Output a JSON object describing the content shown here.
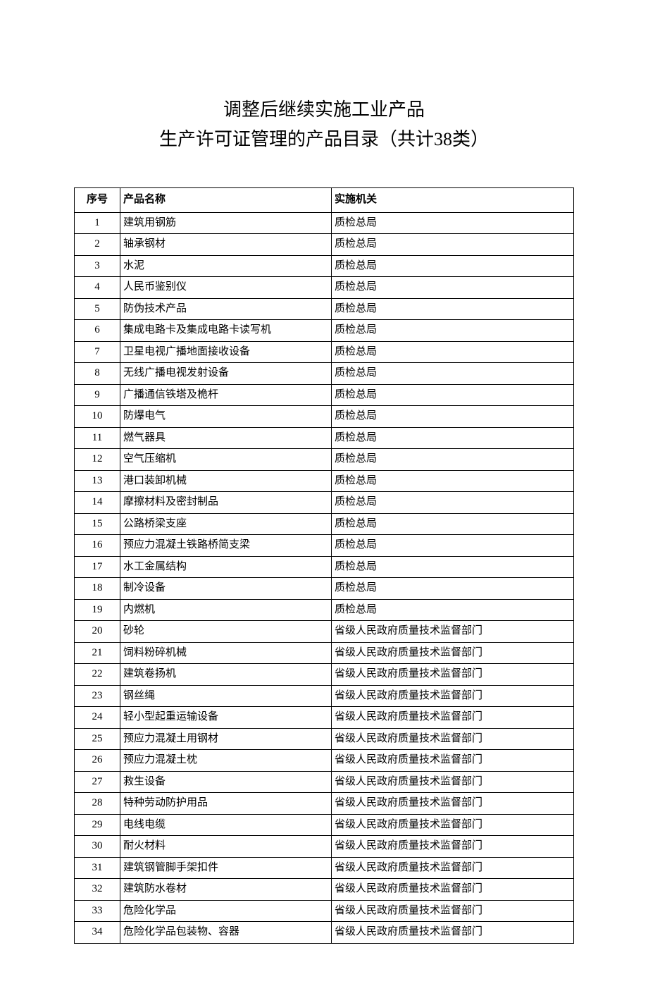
{
  "title_line1": "调整后继续实施工业产品",
  "title_line2": "生产许可证管理的产品目录（共计38类）",
  "headers": {
    "seq": "序号",
    "name": "产品名称",
    "auth": "实施机关"
  },
  "rows": [
    {
      "seq": "1",
      "name": "建筑用钢筋",
      "auth": "质检总局"
    },
    {
      "seq": "2",
      "name": "轴承钢材",
      "auth": "质检总局"
    },
    {
      "seq": "3",
      "name": "水泥",
      "auth": "质检总局"
    },
    {
      "seq": "4",
      "name": "人民币鉴别仪",
      "auth": "质检总局"
    },
    {
      "seq": "5",
      "name": "防伪技术产品",
      "auth": "质检总局"
    },
    {
      "seq": "6",
      "name": "集成电路卡及集成电路卡读写机",
      "auth": "质检总局"
    },
    {
      "seq": "7",
      "name": "卫星电视广播地面接收设备",
      "auth": "质检总局"
    },
    {
      "seq": "8",
      "name": "无线广播电视发射设备",
      "auth": "质检总局"
    },
    {
      "seq": "9",
      "name": "广播通信铁塔及桅杆",
      "auth": "质检总局"
    },
    {
      "seq": "10",
      "name": "防爆电气",
      "auth": "质检总局"
    },
    {
      "seq": "11",
      "name": "燃气器具",
      "auth": "质检总局"
    },
    {
      "seq": "12",
      "name": "空气压缩机",
      "auth": "质检总局"
    },
    {
      "seq": "13",
      "name": "港口装卸机械",
      "auth": "质检总局"
    },
    {
      "seq": "14",
      "name": "摩擦材料及密封制品",
      "auth": "质检总局"
    },
    {
      "seq": "15",
      "name": "公路桥梁支座",
      "auth": "质检总局"
    },
    {
      "seq": "16",
      "name": "预应力混凝土铁路桥简支梁",
      "auth": "质检总局"
    },
    {
      "seq": "17",
      "name": "水工金属结构",
      "auth": "质检总局"
    },
    {
      "seq": "18",
      "name": "制冷设备",
      "auth": "质检总局"
    },
    {
      "seq": "19",
      "name": "内燃机",
      "auth": "质检总局"
    },
    {
      "seq": "20",
      "name": "砂轮",
      "auth": "省级人民政府质量技术监督部门"
    },
    {
      "seq": "21",
      "name": "饲料粉碎机械",
      "auth": "省级人民政府质量技术监督部门"
    },
    {
      "seq": "22",
      "name": "建筑卷扬机",
      "auth": "省级人民政府质量技术监督部门"
    },
    {
      "seq": "23",
      "name": "钢丝绳",
      "auth": "省级人民政府质量技术监督部门"
    },
    {
      "seq": "24",
      "name": "轻小型起重运输设备",
      "auth": "省级人民政府质量技术监督部门"
    },
    {
      "seq": "25",
      "name": "预应力混凝土用钢材",
      "auth": "省级人民政府质量技术监督部门"
    },
    {
      "seq": "26",
      "name": "预应力混凝土枕",
      "auth": "省级人民政府质量技术监督部门"
    },
    {
      "seq": "27",
      "name": "救生设备",
      "auth": "省级人民政府质量技术监督部门"
    },
    {
      "seq": "28",
      "name": "特种劳动防护用品",
      "auth": "省级人民政府质量技术监督部门"
    },
    {
      "seq": "29",
      "name": "电线电缆",
      "auth": "省级人民政府质量技术监督部门"
    },
    {
      "seq": "30",
      "name": "耐火材料",
      "auth": "省级人民政府质量技术监督部门"
    },
    {
      "seq": "31",
      "name": "建筑钢管脚手架扣件",
      "auth": "省级人民政府质量技术监督部门"
    },
    {
      "seq": "32",
      "name": "建筑防水卷材",
      "auth": "省级人民政府质量技术监督部门"
    },
    {
      "seq": "33",
      "name": "危险化学品",
      "auth": "省级人民政府质量技术监督部门"
    },
    {
      "seq": "34",
      "name": "危险化学品包装物、容器",
      "auth": "省级人民政府质量技术监督部门"
    }
  ]
}
